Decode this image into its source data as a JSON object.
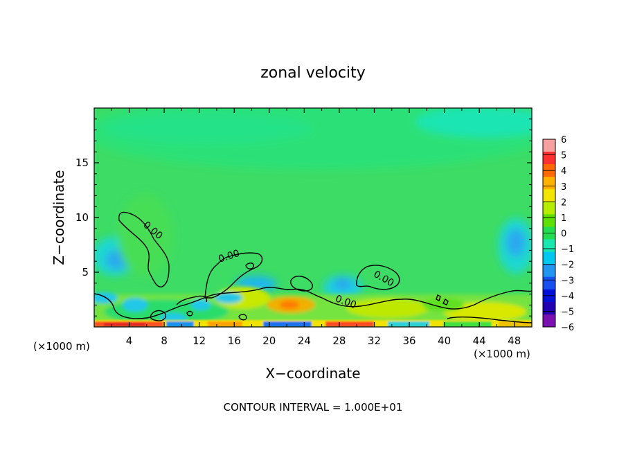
{
  "chart_data": {
    "type": "heatmap",
    "title": "zonal velocity",
    "xlabel": "X−coordinate",
    "ylabel": "Z−coordinate",
    "x_unit_label": "(×1000 m)",
    "x_unit_label_right": "(×1000 m)",
    "xlim": [
      0,
      50
    ],
    "ylim": [
      0,
      20
    ],
    "x_ticks": [
      4,
      8,
      12,
      16,
      20,
      24,
      28,
      32,
      36,
      40,
      44,
      48
    ],
    "x_tick_labels": [
      "4",
      "8",
      "12",
      "16",
      "20",
      "24",
      "28",
      "32",
      "36",
      "40",
      "44",
      "48"
    ],
    "y_ticks": [
      5,
      10,
      15
    ],
    "y_tick_labels": [
      "5",
      "10",
      "15"
    ],
    "contour_level_label": "0.00",
    "footer": "CONTOUR INTERVAL = 1.000E+01",
    "colorbar": {
      "min": -6,
      "max": 6,
      "tick_labels": [
        "6",
        "5",
        "4",
        "3",
        "2",
        "1",
        "0",
        "−1",
        "−2",
        "−3",
        "−4",
        "−5",
        "−6"
      ],
      "colors": [
        "#f7a0a0",
        "#ff3030",
        "#ff6a00",
        "#ffb000",
        "#f2e600",
        "#b6ec00",
        "#5ee000",
        "#22dd50",
        "#18e8b0",
        "#00c8ee",
        "#2096f0",
        "#1850f0",
        "#0010d8",
        "#2000b0",
        "#7a10b0"
      ]
    }
  }
}
